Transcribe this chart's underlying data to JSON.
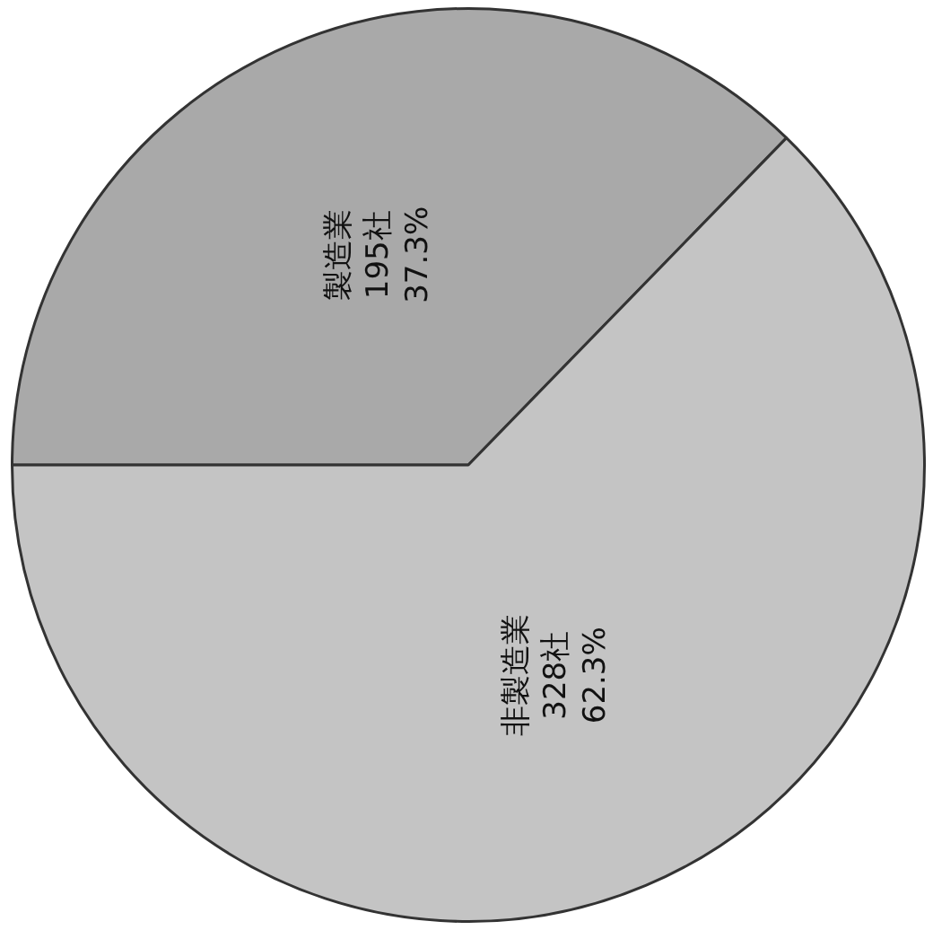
{
  "chart_data": {
    "type": "pie",
    "categories": [
      "製造業",
      "非製造業"
    ],
    "values": [
      195,
      328
    ],
    "colors": [
      "#a9a9a9",
      "#c4c4c4"
    ],
    "value_labels": [
      "195社\n37.3%",
      "328社\n62.3%"
    ],
    "legend": false
  }
}
